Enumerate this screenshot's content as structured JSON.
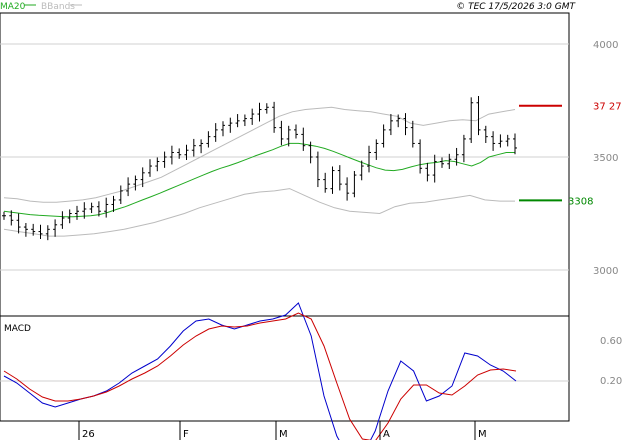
{
  "legend": {
    "ma_label": "MA20",
    "bb_label": "BBands",
    "ma_color": "#22aa22",
    "bb_color": "#bbbbbb"
  },
  "copyright": "© TEC 17/5/2026 3:0 GMT",
  "colors": {
    "price": "#000000",
    "resistance": "#cc0000",
    "support": "#008800",
    "macd": "#0000cc",
    "signal": "#cc0000",
    "grid": "#d0d0d0",
    "axis_text": "#888888"
  },
  "chart_data": [
    {
      "type": "ohlc",
      "y_ticks": [
        3000,
        3500,
        4000
      ],
      "y_tick_labels": [
        "3000",
        "3500",
        "4000"
      ],
      "ylim": [
        2820,
        4180
      ],
      "x_ticks": [
        "26",
        "F",
        "M",
        "A",
        "M"
      ],
      "resistance": {
        "value": 3727,
        "label": "37 27"
      },
      "support": {
        "value": 3308,
        "label": "3308"
      },
      "close": [
        3240,
        3220,
        3190,
        3180,
        3170,
        3160,
        3180,
        3200,
        3230,
        3250,
        3260,
        3270,
        3280,
        3260,
        3290,
        3310,
        3350,
        3380,
        3400,
        3430,
        3460,
        3480,
        3500,
        3520,
        3510,
        3530,
        3550,
        3560,
        3590,
        3620,
        3640,
        3650,
        3660,
        3670,
        3690,
        3710,
        3720,
        3630,
        3580,
        3620,
        3600,
        3550,
        3500,
        3400,
        3360,
        3440,
        3380,
        3340,
        3420,
        3460,
        3520,
        3560,
        3620,
        3660,
        3670,
        3630,
        3560,
        3450,
        3420,
        3480,
        3470,
        3490,
        3510,
        3580,
        3740,
        3620,
        3590,
        3560,
        3570,
        3580,
        3540
      ],
      "ma20": [
        3260,
        3255,
        3250,
        3245,
        3242,
        3240,
        3238,
        3236,
        3236,
        3238,
        3240,
        3245,
        3255,
        3268,
        3280,
        3295,
        3310,
        3325,
        3340,
        3356,
        3372,
        3388,
        3404,
        3420,
        3436,
        3450,
        3462,
        3475,
        3490,
        3505,
        3518,
        3532,
        3548,
        3560,
        3560,
        3555,
        3548,
        3538,
        3525,
        3510,
        3495,
        3480,
        3466,
        3452,
        3442,
        3440,
        3445,
        3456,
        3466,
        3472,
        3476,
        3484,
        3480,
        3470,
        3460,
        3475,
        3500,
        3510,
        3520,
        3520
      ],
      "bb_upper": [
        3320,
        3315,
        3305,
        3300,
        3300,
        3305,
        3310,
        3320,
        3335,
        3350,
        3370,
        3390,
        3410,
        3440,
        3470,
        3500,
        3530,
        3560,
        3590,
        3620,
        3650,
        3680,
        3700,
        3710,
        3715,
        3720,
        3710,
        3705,
        3700,
        3690,
        3680,
        3650,
        3640,
        3650,
        3660,
        3665,
        3660,
        3690,
        3700,
        3710
      ],
      "bb_lower": [
        3180,
        3170,
        3160,
        3150,
        3150,
        3155,
        3160,
        3170,
        3180,
        3195,
        3210,
        3230,
        3250,
        3275,
        3295,
        3315,
        3335,
        3345,
        3350,
        3360,
        3330,
        3300,
        3275,
        3260,
        3255,
        3250,
        3280,
        3295,
        3300,
        3310,
        3320,
        3330,
        3310,
        3305,
        3305
      ]
    },
    {
      "type": "line",
      "title": "MACD",
      "y_tick_labels": [
        "0.60",
        "0.20"
      ],
      "series": [
        {
          "values": [
            0.25,
            0.18,
            0.08,
            -0.02,
            -0.06,
            -0.02,
            0.02,
            0.05,
            0.1,
            0.18,
            0.28,
            0.35,
            0.42,
            0.55,
            0.7,
            0.8,
            0.82,
            0.76,
            0.72,
            0.76,
            0.8,
            0.82,
            0.86,
            0.98,
            0.65,
            0.05,
            -0.35,
            -0.58,
            -0.55,
            -0.3,
            0.1,
            0.4,
            0.3,
            0.0,
            0.05,
            0.15,
            0.48,
            0.45,
            0.36,
            0.3,
            0.2
          ]
        },
        {
          "values": [
            0.3,
            0.22,
            0.12,
            0.04,
            0.0,
            0.0,
            0.02,
            0.05,
            0.09,
            0.15,
            0.22,
            0.28,
            0.35,
            0.45,
            0.56,
            0.65,
            0.72,
            0.75,
            0.74,
            0.75,
            0.78,
            0.8,
            0.82,
            0.88,
            0.82,
            0.55,
            0.18,
            -0.18,
            -0.38,
            -0.4,
            -0.22,
            0.02,
            0.16,
            0.16,
            0.08,
            0.06,
            0.15,
            0.26,
            0.31,
            0.32,
            0.3
          ]
        }
      ]
    }
  ]
}
